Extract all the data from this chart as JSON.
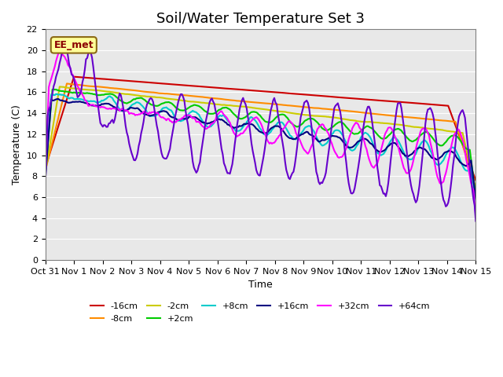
{
  "title": "Soil/Water Temperature Set 3",
  "xlabel": "Time",
  "ylabel": "Temperature (C)",
  "ylim": [
    0,
    22
  ],
  "yticks": [
    0,
    2,
    4,
    6,
    8,
    10,
    12,
    14,
    16,
    18,
    20,
    22
  ],
  "xtick_labels": [
    "Oct 31",
    "Nov 1",
    "Nov 2",
    "Nov 3",
    "Nov 4",
    "Nov 5",
    "Nov 6",
    "Nov 7",
    "Nov 8",
    "Nov 9",
    "Nov 10",
    "Nov 11",
    "Nov 12",
    "Nov 13",
    "Nov 14",
    "Nov 15"
  ],
  "annotation_text": "EE_met",
  "annotation_color": "#8B0000",
  "annotation_bg": "#FFFF99",
  "background_color": "#E8E8E8",
  "series": [
    {
      "label": "-16cm",
      "color": "#CC0000",
      "lw": 1.5
    },
    {
      "label": "-8cm",
      "color": "#FF8C00",
      "lw": 1.5
    },
    {
      "label": "-2cm",
      "color": "#CCCC00",
      "lw": 1.5
    },
    {
      "label": "+2cm",
      "color": "#00CC00",
      "lw": 1.5
    },
    {
      "label": "+8cm",
      "color": "#00CCCC",
      "lw": 1.5
    },
    {
      "label": "+16cm",
      "color": "#000080",
      "lw": 1.5
    },
    {
      "label": "+32cm",
      "color": "#FF00FF",
      "lw": 1.5
    },
    {
      "label": "+64cm",
      "color": "#6600CC",
      "lw": 1.5
    }
  ],
  "title_fontsize": 13,
  "tick_fontsize": 8,
  "label_fontsize": 9
}
